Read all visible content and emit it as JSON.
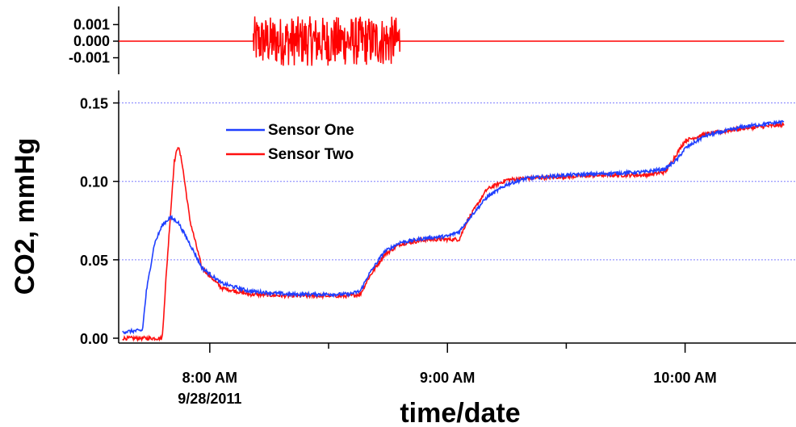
{
  "chart_data": [
    {
      "type": "line",
      "panel": "residual",
      "title": "",
      "xlabel": "",
      "ylabel": "",
      "ylim": [
        -0.0018,
        0.0018
      ],
      "y_ticks": [
        -0.001,
        0.0,
        0.001
      ],
      "y_tick_labels": [
        "-0.001",
        "0.000",
        "0.001"
      ],
      "grid": false,
      "series": [
        {
          "color": "#ff0000",
          "x": [
            "7:37",
            "8:10",
            "8:11",
            "8:48",
            "8:49",
            "10:25"
          ],
          "y": [
            0.0,
            0.0,
            0.0015,
            -0.0015,
            0.0,
            0.0
          ],
          "note_hidden": ""
        }
      ]
    },
    {
      "type": "line",
      "panel": "main",
      "title": "",
      "xlabel": "time/date",
      "ylabel": "CO2, mmHg",
      "xlim": [
        "7:37",
        "10:28"
      ],
      "ylim": [
        0.0,
        0.158
      ],
      "y_ticks": [
        0.0,
        0.05,
        0.1,
        0.15
      ],
      "y_tick_labels": [
        "0.00",
        "0.05",
        "0.10",
        "0.15"
      ],
      "x_ticks": [
        {
          "time": "8:00",
          "label": "8:00 AM",
          "sublabel": "9/28/2011"
        },
        {
          "time": "9:00",
          "label": "9:00 AM",
          "sublabel": ""
        },
        {
          "time": "10:00",
          "label": "10:00 AM",
          "sublabel": ""
        }
      ],
      "x_minor_ticks": [
        "8:30",
        "9:30"
      ],
      "grid": true,
      "legend_position": "top-left",
      "series": [
        {
          "name": "Sensor One",
          "color": "#1f3fff",
          "x": [
            "7:38",
            "7:43",
            "7:44",
            "7:46",
            "7:48",
            "7:50",
            "7:52",
            "7:55",
            "7:58",
            "8:03",
            "8:10",
            "8:20",
            "8:30",
            "8:35",
            "8:38",
            "8:40",
            "8:44",
            "8:48",
            "8:55",
            "9:00",
            "9:03",
            "9:05",
            "9:10",
            "9:15",
            "9:20",
            "9:30",
            "9:40",
            "9:50",
            "9:55",
            "9:58",
            "10:00",
            "10:05",
            "10:15",
            "10:25"
          ],
          "y": [
            0.004,
            0.005,
            0.03,
            0.06,
            0.072,
            0.077,
            0.074,
            0.06,
            0.045,
            0.035,
            0.03,
            0.028,
            0.028,
            0.028,
            0.03,
            0.04,
            0.055,
            0.061,
            0.064,
            0.065,
            0.068,
            0.075,
            0.09,
            0.098,
            0.102,
            0.104,
            0.105,
            0.106,
            0.108,
            0.114,
            0.121,
            0.129,
            0.135,
            0.138
          ]
        },
        {
          "name": "Sensor Two",
          "color": "#ff1010",
          "x": [
            "7:38",
            "7:48",
            "7:49",
            "7:51",
            "7:52",
            "7:53",
            "7:55",
            "7:58",
            "8:03",
            "8:10",
            "8:20",
            "8:30",
            "8:35",
            "8:38",
            "8:40",
            "8:44",
            "8:48",
            "8:55",
            "9:00",
            "9:03",
            "9:05",
            "9:10",
            "9:15",
            "9:20",
            "9:30",
            "9:40",
            "9:50",
            "9:55",
            "9:58",
            "10:00",
            "10:05",
            "10:15",
            "10:25"
          ],
          "y": [
            0.0,
            0.0,
            0.04,
            0.112,
            0.123,
            0.112,
            0.075,
            0.045,
            0.032,
            0.028,
            0.027,
            0.027,
            0.027,
            0.028,
            0.038,
            0.053,
            0.06,
            0.063,
            0.063,
            0.063,
            0.075,
            0.095,
            0.101,
            0.102,
            0.103,
            0.104,
            0.104,
            0.106,
            0.118,
            0.126,
            0.13,
            0.134,
            0.136
          ]
        }
      ]
    }
  ]
}
